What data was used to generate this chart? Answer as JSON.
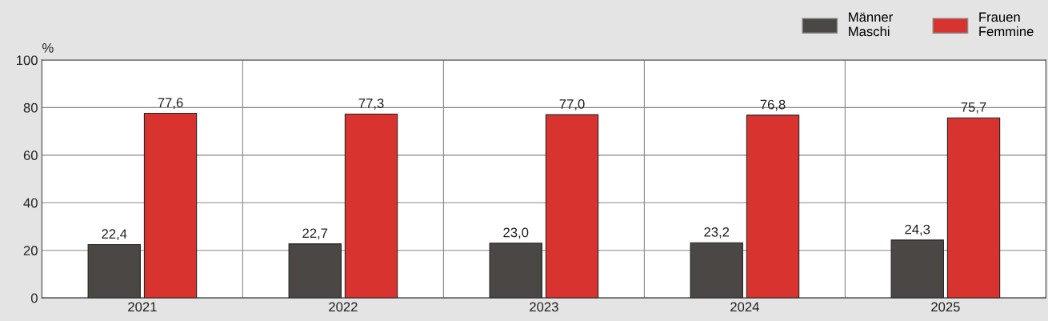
{
  "chart_data": {
    "type": "bar",
    "ylabel": "%",
    "categories": [
      "2021",
      "2022",
      "2023",
      "2024",
      "2025"
    ],
    "series": [
      {
        "name": "Männer\nMaschi",
        "color": "#4a4745",
        "values": [
          22.4,
          22.7,
          23.0,
          23.2,
          24.3
        ],
        "value_labels": [
          "22,4",
          "22,7",
          "23,0",
          "23,2",
          "24,3"
        ]
      },
      {
        "name": "Frauen\nFemmine",
        "color": "#d93330",
        "values": [
          77.6,
          77.3,
          77.0,
          76.8,
          75.7
        ],
        "value_labels": [
          "77,6",
          "77,3",
          "77,0",
          "76,8",
          "75,7"
        ]
      }
    ],
    "ylim": [
      0,
      100
    ],
    "yticks": [
      0,
      20,
      40,
      60,
      80,
      100
    ],
    "grid": true,
    "legend": "top right"
  }
}
